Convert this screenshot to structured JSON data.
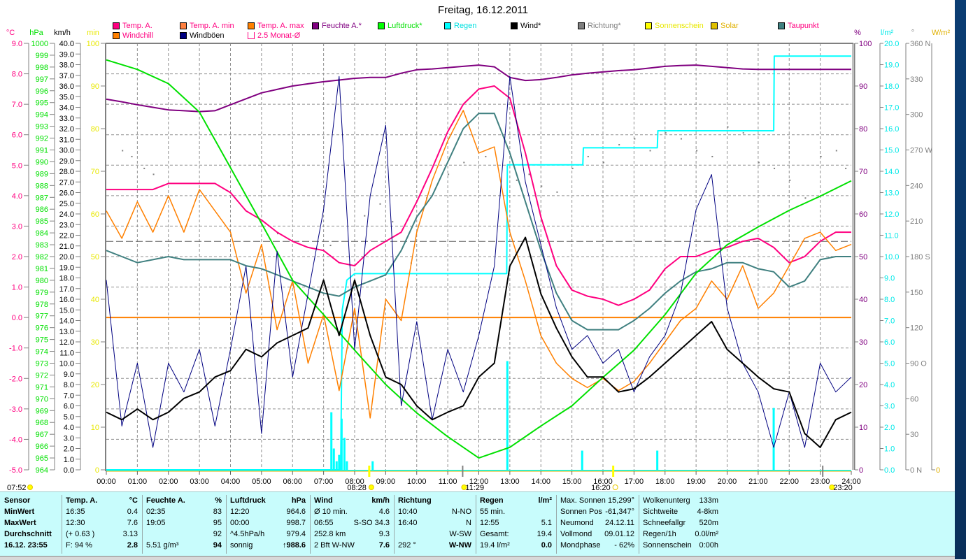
{
  "title": "Freitag, 16.12.2011",
  "legend": [
    {
      "label": "Temp. A.",
      "swatch": "#ff0080",
      "text": "#ff0080"
    },
    {
      "label": "Temp. A. min",
      "swatch": "#ff8040",
      "text": "#ff0080"
    },
    {
      "label": "Temp. A. max",
      "swatch": "#ff8000",
      "text": "#ff0080"
    },
    {
      "label": "Feuchte A.*",
      "swatch": "#800080",
      "text": "#800080"
    },
    {
      "label": "Luftdruck*",
      "swatch": "#00ff00",
      "text": "#00e000"
    },
    {
      "label": "Regen",
      "swatch": "#00ffff",
      "text": "#00e0e0"
    },
    {
      "label": "Wind*",
      "swatch": "#000000",
      "text": "#000000"
    },
    {
      "label": "Richtung*",
      "swatch": "#808080",
      "text": "#808080"
    },
    {
      "label": "Sonnenschein",
      "swatch": "#ffff00",
      "text": "#e8e800"
    },
    {
      "label": "Solar",
      "swatch": "#e0c000",
      "text": "#e0b000"
    },
    {
      "label": "Taupunkt",
      "swatch": "#408080",
      "text": "#ff0080"
    },
    {
      "label": "Windchill",
      "swatch": "#ff8000",
      "text": "#ff0080"
    },
    {
      "label": "Windböen",
      "swatch": "#000080",
      "text": "#000000"
    },
    {
      "label": "2.5 Monat-Ø",
      "swatch": "none",
      "text": "#ff0080"
    }
  ],
  "chart_data": {
    "type": "line",
    "title": "Freitag, 16.12.2011",
    "xlabel": "",
    "xlim": [
      0,
      24
    ],
    "x_ticks": [
      "00:00",
      "01:00",
      "02:00",
      "03:00",
      "04:00",
      "05:00",
      "06:00",
      "07:00",
      "08:00",
      "09:00",
      "10:00",
      "11:00",
      "12:00",
      "13:00",
      "14:00",
      "15:00",
      "16:00",
      "17:00",
      "18:00",
      "19:00",
      "20:00",
      "21:00",
      "22:00",
      "23:00",
      "24:00"
    ],
    "grid": true,
    "axes": {
      "temp": {
        "unit": "°C",
        "min": -5,
        "max": 9,
        "step": 1,
        "decimals": 1,
        "color": "#ff0080",
        "side": "left"
      },
      "pressure": {
        "unit": "hPa",
        "min": 964,
        "max": 1000,
        "step": 1,
        "decimals": 0,
        "color": "#00e000",
        "side": "left"
      },
      "wind": {
        "unit": "km/h",
        "min": 0,
        "max": 40,
        "step": 1,
        "decimals": 1,
        "color": "#000000",
        "side": "left"
      },
      "sun_min": {
        "unit": "min",
        "min": 0,
        "max": 100,
        "step": 10,
        "decimals": 0,
        "color": "#e8e800",
        "side": "left"
      },
      "humidity": {
        "unit": "%",
        "min": 0,
        "max": 100,
        "step": 10,
        "decimals": 0,
        "color": "#800080",
        "side": "right"
      },
      "rain": {
        "unit": "l/m²",
        "min": 0,
        "max": 20,
        "step": 1,
        "decimals": 1,
        "color": "#00e8e8",
        "side": "right"
      },
      "direction": {
        "unit": "°",
        "min": 0,
        "max": 360,
        "step": 30,
        "decimals": 0,
        "color": "#808080",
        "side": "right",
        "compass": {
          "360": "N",
          "270": "W",
          "180": "S",
          "90": "O",
          "0": "N"
        }
      },
      "solar": {
        "unit": "W/m²",
        "min": 0,
        "max": 0,
        "labels": [
          "0"
        ],
        "color": "#e0b000",
        "side": "right"
      }
    },
    "x_half_hourly": "0 to 24 step 0.5",
    "series": [
      {
        "name": "Temp. A.",
        "axis": "temp",
        "color": "#ff0080",
        "width": 2,
        "values": [
          4.2,
          4.2,
          4.2,
          4.2,
          4.4,
          4.4,
          4.4,
          4.4,
          4.1,
          3.5,
          3.2,
          2.8,
          2.5,
          2.3,
          2.2,
          1.8,
          1.7,
          2.2,
          2.5,
          2.8,
          3.8,
          4.9,
          6.1,
          7.0,
          7.5,
          7.6,
          7.2,
          5.4,
          3.3,
          1.7,
          0.9,
          0.7,
          0.6,
          0.4,
          0.6,
          0.9,
          1.6,
          2.0,
          2.0,
          2.2,
          2.3,
          2.5,
          2.6,
          2.3,
          1.8,
          2.0,
          2.5,
          2.8,
          2.8
        ]
      },
      {
        "name": "Windchill",
        "axis": "temp",
        "color": "#ff8000",
        "width": 1.5,
        "values": [
          3.5,
          2.6,
          3.8,
          2.8,
          4.0,
          2.8,
          4.2,
          3.5,
          2.8,
          0.8,
          2.4,
          -0.4,
          1.2,
          -1.5,
          0.1,
          -2.4,
          0.3,
          -3.3,
          0.6,
          -0.1,
          2.8,
          4.5,
          5.8,
          6.8,
          5.4,
          5.6,
          2.8,
          1.2,
          -0.6,
          -1.5,
          -2.0,
          -2.3,
          -2.0,
          -2.4,
          -2.1,
          -1.5,
          -0.8,
          -0.1,
          0.3,
          1.2,
          0.6,
          1.7,
          0.3,
          0.8,
          1.7,
          2.6,
          2.8,
          2.2,
          2.4
        ]
      },
      {
        "name": "Taupunkt",
        "axis": "temp",
        "color": "#408080",
        "width": 2,
        "values": [
          2.2,
          2.0,
          1.8,
          1.9,
          2.0,
          1.9,
          1.9,
          1.9,
          1.9,
          1.7,
          1.6,
          1.4,
          1.2,
          1.0,
          0.8,
          0.7,
          1.0,
          1.2,
          1.4,
          2.2,
          3.3,
          4.0,
          5.1,
          6.2,
          6.7,
          6.7,
          5.4,
          3.8,
          2.2,
          0.8,
          -0.1,
          -0.4,
          -0.4,
          -0.4,
          -0.1,
          0.3,
          0.8,
          1.2,
          1.5,
          1.6,
          1.8,
          1.8,
          1.6,
          1.5,
          1.0,
          1.2,
          1.9,
          2.0,
          2.0
        ]
      },
      {
        "name": "Feuchte A.*",
        "axis": "humidity",
        "color": "#800080",
        "width": 2,
        "values": [
          86.9,
          86.3,
          85.6,
          85.0,
          84.4,
          84.2,
          84.0,
          84.2,
          85.6,
          87.0,
          88.4,
          89.2,
          90.0,
          90.5,
          91.0,
          91.4,
          91.8,
          92.0,
          92.0,
          93.0,
          93.8,
          94.0,
          94.3,
          94.6,
          94.9,
          94.5,
          92.0,
          91.3,
          91.5,
          92.0,
          92.6,
          93.0,
          93.3,
          93.6,
          93.8,
          94.2,
          94.6,
          94.8,
          94.9,
          94.6,
          94.3,
          94.0,
          93.9,
          93.9,
          93.9,
          93.9,
          93.9,
          93.9,
          93.9
        ]
      },
      {
        "name": "Windböen",
        "axis": "wind",
        "color": "#000080",
        "width": 1,
        "values": [
          17.8,
          4.1,
          10.0,
          2.1,
          10.0,
          7.3,
          11.3,
          4.1,
          11.3,
          19.1,
          3.4,
          20.5,
          8.7,
          16.5,
          24.4,
          36.9,
          11.3,
          25.7,
          32.3,
          6.0,
          13.9,
          4.7,
          11.3,
          7.3,
          12.6,
          19.1,
          36.9,
          27.0,
          21.1,
          15.2,
          11.3,
          12.6,
          10.0,
          11.3,
          7.3,
          10.6,
          12.6,
          16.5,
          24.4,
          27.7,
          15.2,
          10.0,
          7.3,
          2.1,
          7.3,
          2.1,
          10.0,
          7.3,
          8.7
        ]
      },
      {
        "name": "Wind*",
        "axis": "wind",
        "color": "#000000",
        "width": 2,
        "values": [
          5.4,
          4.7,
          5.7,
          4.7,
          5.4,
          6.7,
          7.3,
          8.7,
          9.3,
          11.3,
          10.6,
          11.9,
          12.6,
          13.3,
          17.8,
          12.6,
          17.8,
          12.6,
          8.7,
          8.0,
          6.0,
          4.7,
          5.4,
          6.0,
          8.7,
          10.0,
          19.1,
          21.8,
          16.5,
          13.3,
          10.6,
          8.7,
          8.7,
          7.3,
          7.6,
          8.7,
          10.0,
          11.3,
          12.6,
          13.9,
          11.3,
          10.0,
          8.7,
          7.6,
          7.3,
          3.4,
          2.1,
          4.7,
          5.4
        ]
      }
    ],
    "pressure_hourly": {
      "name": "Luftdruck*",
      "axis": "pressure",
      "color": "#00e000",
      "width": 2,
      "values": [
        998.6,
        997.8,
        996.6,
        994.2,
        989.5,
        984.8,
        980.0,
        977.1,
        974.1,
        971.2,
        968.8,
        966.8,
        965.0,
        965.9,
        967.7,
        969.4,
        971.8,
        974.1,
        977.1,
        980.6,
        983.0,
        984.5,
        985.9,
        987.1,
        988.4
      ]
    },
    "rain_sum": {
      "name": "Regen",
      "axis": "rain",
      "color": "#00ffff",
      "points": [
        [
          0,
          0
        ],
        [
          7.55,
          0
        ],
        [
          7.6,
          7.5
        ],
        [
          7.75,
          8.9
        ],
        [
          8.0,
          9.2
        ],
        [
          12.9,
          9.2
        ],
        [
          12.92,
          14.3
        ],
        [
          15.35,
          14.3
        ],
        [
          15.37,
          15.1
        ],
        [
          17.75,
          15.1
        ],
        [
          17.77,
          15.9
        ],
        [
          21.5,
          15.9
        ],
        [
          21.52,
          19.4
        ],
        [
          24,
          19.4
        ]
      ]
    },
    "rain_bars": [
      [
        7.25,
        2.7
      ],
      [
        7.33,
        1.0
      ],
      [
        7.42,
        0.4
      ],
      [
        7.5,
        0.7
      ],
      [
        7.58,
        2.4
      ],
      [
        7.67,
        1.5
      ],
      [
        7.75,
        0.4
      ],
      [
        8.58,
        0.4
      ],
      [
        12.92,
        5.1
      ],
      [
        15.33,
        0.9
      ],
      [
        17.75,
        0.9
      ],
      [
        21.5,
        2.9
      ]
    ],
    "direction_points": [
      [
        0.5,
        270
      ],
      [
        0.8,
        265
      ],
      [
        1.2,
        255
      ],
      [
        1.5,
        250
      ],
      [
        5.5,
        200
      ],
      [
        7.2,
        190
      ],
      [
        8.3,
        215
      ],
      [
        8.8,
        225
      ],
      [
        9.2,
        210
      ],
      [
        9.8,
        175
      ],
      [
        10.3,
        230
      ],
      [
        11.0,
        250
      ],
      [
        11.5,
        260
      ],
      [
        12.2,
        265
      ],
      [
        13.2,
        245
      ],
      [
        13.6,
        250
      ],
      [
        14.0,
        240
      ],
      [
        14.5,
        235
      ],
      [
        15.0,
        255
      ],
      [
        15.5,
        265
      ],
      [
        16.0,
        260
      ],
      [
        16.5,
        275
      ],
      [
        17.0,
        280
      ],
      [
        17.5,
        270
      ],
      [
        18.0,
        285
      ],
      [
        18.5,
        280
      ],
      [
        19.0,
        270
      ],
      [
        19.5,
        265
      ],
      [
        20.0,
        290
      ],
      [
        20.5,
        285
      ],
      [
        21.0,
        260
      ],
      [
        21.5,
        255
      ],
      [
        22.0,
        245
      ],
      [
        22.5,
        230
      ],
      [
        23.0,
        265
      ],
      [
        23.5,
        270
      ],
      [
        23.8,
        255
      ]
    ],
    "reference_lines": [
      {
        "name": "2.5 Monat-Ø",
        "axis": "temp",
        "value": 2.5,
        "color": "#606060",
        "dashed": true
      },
      {
        "name": "frost-line",
        "axis": "temp",
        "value": 0.0,
        "color": "#ff8000",
        "dashed": false
      }
    ],
    "sun_markers": [
      8.47,
      16.33
    ],
    "events": [
      {
        "time": "07:52",
        "hour": null
      },
      {
        "time": "08:28",
        "hour": 8.47
      },
      {
        "time": "11:29",
        "hour": 11.48
      },
      {
        "time": "16:20",
        "hour": 16.33
      },
      {
        "time": "23:20",
        "hour": 23.33
      }
    ]
  },
  "panel": {
    "columns": [
      {
        "header": [
          "Sensor",
          ""
        ],
        "rows": [
          [
            "MinWert",
            ""
          ],
          [
            "MaxWert",
            ""
          ],
          [
            "Durchschnitt",
            ""
          ],
          [
            "16.12. 23:55",
            ""
          ]
        ],
        "boldrows": true
      },
      {
        "header": [
          "Temp. A.",
          "°C"
        ],
        "rows": [
          [
            "16:35",
            "0.4"
          ],
          [
            "12:30",
            "7.6"
          ],
          [
            "(+ 0.63 )",
            "3.13"
          ],
          [
            "F: 94 %",
            "2.8"
          ]
        ]
      },
      {
        "header": [
          "Feuchte A.",
          "%"
        ],
        "rows": [
          [
            "02:35",
            "83"
          ],
          [
            "19:05",
            "95"
          ],
          [
            "",
            "92"
          ],
          [
            "5.51 g/m³",
            "94"
          ]
        ]
      },
      {
        "header": [
          "Luftdruck",
          "hPa"
        ],
        "rows": [
          [
            "12:20",
            "964.6"
          ],
          [
            "00:00",
            "998.7"
          ],
          [
            "^4.5hPa/h",
            "979.4"
          ],
          [
            "sonnig",
            "↑988.6"
          ]
        ]
      },
      {
        "header": [
          "Wind",
          "km/h"
        ],
        "rows": [
          [
            "Ø 10 min.",
            "4.6"
          ],
          [
            "06:55",
            "S-SO 34.3"
          ],
          [
            "252.8 km",
            "9.3"
          ],
          [
            "2 Bft W-NW",
            "7.6"
          ]
        ]
      },
      {
        "header": [
          "Richtung",
          ""
        ],
        "rows": [
          [
            "10:40",
            "N-NO"
          ],
          [
            "16:40",
            "N"
          ],
          [
            "",
            "W-SW"
          ],
          [
            "292 °",
            "W-NW"
          ]
        ]
      },
      {
        "header": [
          "Regen",
          "l/m²"
        ],
        "rows": [
          [
            "55 min.",
            ""
          ],
          [
            "12:55",
            "5.1"
          ],
          [
            "Gesamt:",
            "19.4"
          ],
          [
            "19.4 l/m²",
            "0.0"
          ]
        ]
      },
      {
        "header": null,
        "rows": [
          [
            "Max. Sonnen",
            "15,299°"
          ],
          [
            "Sonnen Pos",
            "-61,347°"
          ],
          [
            "Neumond",
            "24.12.11"
          ],
          [
            "Vollmond",
            "09.01.12"
          ],
          [
            "Mondphase",
            "- 62%"
          ]
        ]
      },
      {
        "header": null,
        "rows": [
          [
            "Wolkenunterg",
            "133m"
          ],
          [
            "Sichtweite",
            "4-8km"
          ],
          [
            "Schneefallgr",
            "520m"
          ],
          [
            "Regen/1h",
            "0.0l/m²"
          ],
          [
            "Sonnenschein",
            "0:00h"
          ]
        ]
      }
    ]
  }
}
